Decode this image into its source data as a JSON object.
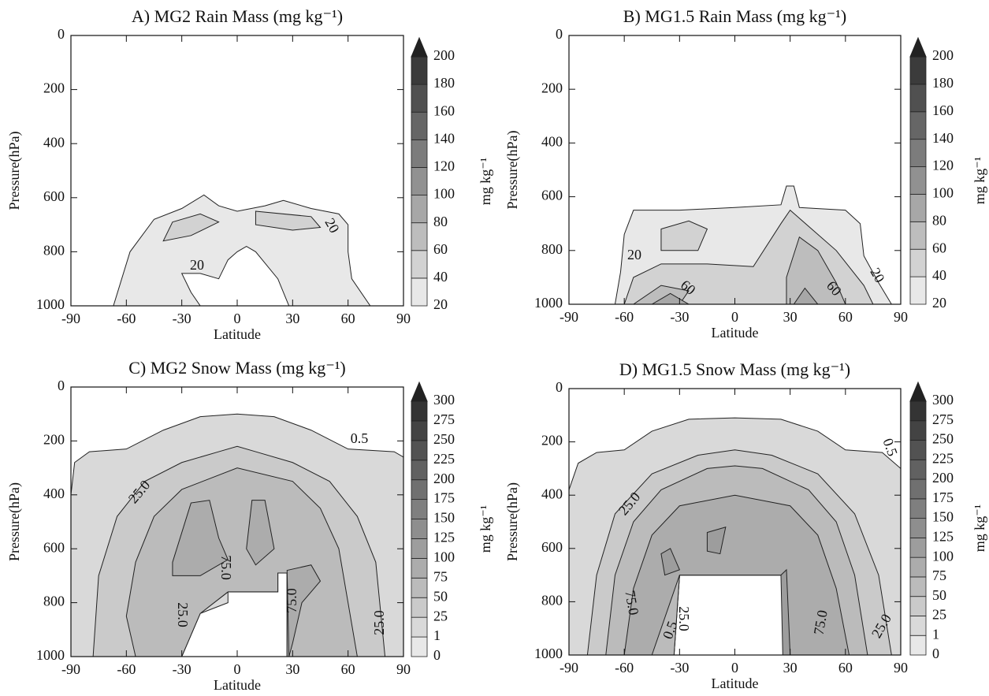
{
  "chart_data": [
    {
      "type": "contour",
      "title": "A) MG2 Rain Mass (mg kg⁻¹)",
      "x_label": "Latitude",
      "y_label": "Pressure(hPa)",
      "colorbar_label": "mg kg⁻¹",
      "xlim": [
        -90,
        90
      ],
      "xticks": [
        -90,
        -60,
        -30,
        0,
        30,
        60,
        90
      ],
      "ylim": [
        1000,
        0
      ],
      "yticks": [
        0,
        200,
        400,
        600,
        800,
        1000
      ],
      "levels": [
        20,
        40,
        60,
        80,
        100,
        120,
        140,
        160,
        180,
        200
      ],
      "regions": [
        {
          "level": 20,
          "lat": [
            -67,
            -58,
            -45,
            -30,
            -18,
            -10,
            0,
            15,
            25,
            40,
            55,
            60,
            60,
            62,
            72,
            28,
            22,
            10,
            5,
            0,
            -5,
            -10,
            -20,
            -30,
            -25,
            -20
          ],
          "pressure": [
            1000,
            800,
            680,
            640,
            590,
            630,
            650,
            630,
            610,
            640,
            660,
            700,
            800,
            900,
            1000,
            1000,
            900,
            800,
            780,
            800,
            830,
            900,
            880,
            880,
            950,
            1000
          ]
        },
        {
          "level": 40,
          "lat": [
            -35,
            -20,
            -10,
            -25,
            -40
          ],
          "pressure": [
            690,
            660,
            690,
            740,
            760
          ]
        },
        {
          "level": 40,
          "lat": [
            10,
            40,
            45,
            30,
            10
          ],
          "pressure": [
            650,
            670,
            710,
            720,
            700
          ]
        }
      ],
      "contour_labels": [
        20,
        20
      ]
    },
    {
      "type": "contour",
      "title": "B) MG1.5 Rain Mass (mg kg⁻¹)",
      "x_label": "Latitude",
      "y_label": "Pressure(hPa)",
      "colorbar_label": "mg kg⁻¹",
      "xlim": [
        -90,
        90
      ],
      "xticks": [
        -90,
        -60,
        -30,
        0,
        30,
        60,
        90
      ],
      "ylim": [
        1000,
        0
      ],
      "yticks": [
        0,
        200,
        400,
        600,
        800,
        1000
      ],
      "levels": [
        20,
        40,
        60,
        80,
        100,
        120,
        140,
        160,
        180,
        200
      ],
      "regions": [
        {
          "level": 20,
          "lat": [
            -65,
            -62,
            -60,
            -55,
            -30,
            0,
            25,
            28,
            32,
            35,
            60,
            68,
            70,
            78,
            85
          ],
          "pressure": [
            1000,
            880,
            740,
            650,
            650,
            640,
            630,
            560,
            560,
            640,
            650,
            700,
            820,
            920,
            1000
          ]
        },
        {
          "level": 40,
          "lat": [
            -60,
            -55,
            -40,
            -15,
            10,
            25,
            30,
            35,
            55,
            70,
            75
          ],
          "pressure": [
            1000,
            900,
            850,
            850,
            860,
            700,
            650,
            680,
            800,
            930,
            1000
          ]
        },
        {
          "level": 40,
          "lat": [
            -40,
            -25,
            -15,
            -20,
            -40
          ],
          "pressure": [
            720,
            690,
            720,
            800,
            800
          ]
        },
        {
          "level": 60,
          "lat": [
            -55,
            -40,
            -25,
            -30
          ],
          "pressure": [
            1000,
            930,
            950,
            1000
          ]
        },
        {
          "level": 60,
          "lat": [
            28,
            28,
            35,
            45,
            55,
            60
          ],
          "pressure": [
            1000,
            900,
            750,
            800,
            920,
            1000
          ]
        },
        {
          "level": 80,
          "lat": [
            -45,
            -35,
            -25
          ],
          "pressure": [
            1000,
            960,
            1000
          ]
        },
        {
          "level": 80,
          "lat": [
            32,
            38,
            45
          ],
          "pressure": [
            1000,
            940,
            1000
          ]
        }
      ],
      "contour_labels": [
        20,
        60,
        60,
        20
      ]
    },
    {
      "type": "contour",
      "title": "C) MG2 Snow Mass (mg kg⁻¹)",
      "x_label": "Latitude",
      "y_label": "Pressure(hPa)",
      "colorbar_label": "mg kg⁻¹",
      "xlim": [
        -90,
        90
      ],
      "xticks": [
        -90,
        -60,
        -30,
        0,
        30,
        60,
        90
      ],
      "ylim": [
        1000,
        0
      ],
      "yticks": [
        0,
        200,
        400,
        600,
        800,
        1000
      ],
      "levels": [
        0,
        1,
        25,
        50,
        75,
        100,
        125,
        150,
        175,
        200,
        225,
        250,
        275,
        300
      ],
      "regions": [
        {
          "level": 1,
          "lat": [
            -90,
            -90,
            -88,
            -80,
            -60,
            -40,
            -20,
            0,
            20,
            40,
            60,
            85,
            90,
            90,
            27,
            27,
            22,
            22,
            -5,
            -5,
            -20,
            -28,
            -30
          ],
          "pressure": [
            1000,
            400,
            280,
            240,
            230,
            160,
            110,
            100,
            110,
            160,
            230,
            240,
            260,
            1000,
            1000,
            690,
            690,
            760,
            760,
            800,
            840,
            900,
            1000
          ]
        },
        {
          "level": 25,
          "lat": [
            -78,
            -75,
            -65,
            -50,
            -30,
            -10,
            0,
            10,
            30,
            50,
            65,
            75,
            80,
            27,
            27,
            22,
            22,
            -5,
            -20,
            -30
          ],
          "pressure": [
            1000,
            700,
            480,
            350,
            280,
            240,
            220,
            240,
            280,
            350,
            480,
            650,
            1000,
            1000,
            690,
            690,
            760,
            760,
            840,
            1000
          ]
        },
        {
          "level": 50,
          "lat": [
            -55,
            -60,
            -55,
            -45,
            -30,
            0,
            30,
            45,
            55,
            60,
            65,
            27,
            27,
            22,
            22,
            -5,
            -20,
            -30
          ],
          "pressure": [
            1000,
            850,
            650,
            480,
            380,
            300,
            350,
            450,
            600,
            800,
            1000,
            1000,
            690,
            690,
            760,
            760,
            840,
            1000
          ]
        },
        {
          "level": 75,
          "lat": [
            -35,
            -25,
            -15,
            -10,
            -5,
            -20,
            -35
          ],
          "pressure": [
            650,
            430,
            420,
            560,
            640,
            700,
            700
          ]
        },
        {
          "level": 75,
          "lat": [
            5,
            8,
            15,
            20,
            10
          ],
          "pressure": [
            600,
            420,
            420,
            600,
            660
          ]
        },
        {
          "level": 75,
          "lat": [
            27,
            40,
            45,
            35,
            30,
            28
          ],
          "pressure": [
            680,
            660,
            720,
            800,
            950,
            1000
          ]
        }
      ],
      "contour_labels": [
        0.5,
        {
          "value": 25,
          "label": "25.0"
        },
        {
          "value": 75,
          "label": "75.0"
        },
        {
          "value": 25,
          "label": "25.0"
        },
        {
          "value": 75,
          "label": "75.0"
        },
        {
          "value": 25,
          "label": "25.0"
        }
      ]
    },
    {
      "type": "contour",
      "title": "D) MG1.5 Snow Mass (mg kg⁻¹)",
      "x_label": "Latitude",
      "y_label": "Pressure(hPa)",
      "colorbar_label": "mg kg⁻¹",
      "xlim": [
        -90,
        90
      ],
      "xticks": [
        -90,
        -60,
        -30,
        0,
        30,
        60,
        90
      ],
      "ylim": [
        1000,
        0
      ],
      "yticks": [
        0,
        200,
        400,
        600,
        800,
        1000
      ],
      "levels": [
        0,
        1,
        25,
        50,
        75,
        100,
        125,
        150,
        175,
        200,
        225,
        250,
        275,
        300
      ],
      "regions": [
        {
          "level": 1,
          "lat": [
            -90,
            -90,
            -85,
            -75,
            -60,
            -45,
            -25,
            0,
            25,
            45,
            60,
            80,
            90,
            90,
            27,
            27,
            -30,
            -33
          ],
          "pressure": [
            1000,
            380,
            280,
            240,
            230,
            160,
            115,
            110,
            115,
            160,
            230,
            240,
            300,
            1000,
            1000,
            700,
            700,
            1000
          ]
        },
        {
          "level": 25,
          "lat": [
            -80,
            -75,
            -65,
            -45,
            -20,
            0,
            20,
            45,
            65,
            78,
            85,
            27,
            27,
            -30,
            -33
          ],
          "pressure": [
            1000,
            700,
            470,
            320,
            250,
            230,
            250,
            320,
            470,
            700,
            1000,
            1000,
            700,
            700,
            1000
          ]
        },
        {
          "level": 50,
          "lat": [
            -70,
            -65,
            -55,
            -40,
            -15,
            0,
            15,
            40,
            55,
            65,
            72,
            27,
            27,
            -30,
            -33
          ],
          "pressure": [
            1000,
            700,
            500,
            380,
            300,
            290,
            300,
            380,
            500,
            700,
            1000,
            1000,
            700,
            700,
            1000
          ]
        },
        {
          "level": 75,
          "lat": [
            -60,
            -55,
            -45,
            -30,
            0,
            30,
            45,
            55,
            62,
            27,
            27,
            -30,
            -35,
            -45
          ],
          "pressure": [
            1000,
            750,
            550,
            440,
            400,
            440,
            550,
            750,
            1000,
            1000,
            700,
            700,
            800,
            1000
          ]
        },
        {
          "level": 100,
          "lat": [
            -40,
            -35,
            -30,
            -38
          ],
          "pressure": [
            620,
            600,
            680,
            700
          ]
        },
        {
          "level": 100,
          "lat": [
            -15,
            -5,
            -8,
            -15
          ],
          "pressure": [
            540,
            520,
            620,
            610
          ]
        },
        {
          "level": 100,
          "lat": [
            25,
            28,
            30,
            26
          ],
          "pressure": [
            700,
            680,
            1000,
            1000
          ]
        }
      ],
      "contour_labels": [
        0.5,
        {
          "value": 25,
          "label": "25.0"
        },
        {
          "value": 75,
          "label": "75.0"
        },
        0.5,
        {
          "value": 25,
          "label": "25.0"
        },
        {
          "value": 75,
          "label": "75.0"
        },
        {
          "value": 25,
          "label": "25.0"
        }
      ]
    }
  ]
}
